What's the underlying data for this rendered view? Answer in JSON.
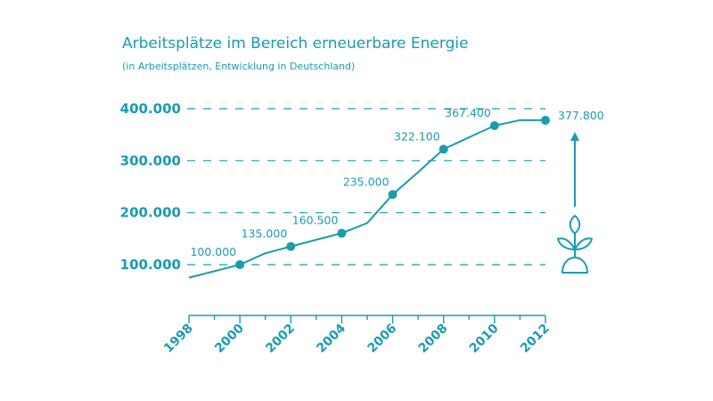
{
  "chart_data": {
    "type": "line",
    "title": "Arbeitsplätze im Bereich erneuerbare Energie",
    "subtitle": "(in Arbeitsplätzen, Entwicklung in Deutschland)",
    "xlabel": "",
    "ylabel": "",
    "xlim": [
      1998,
      2012
    ],
    "ylim": [
      0,
      400000
    ],
    "x_ticks": [
      "1998",
      "2000",
      "2002",
      "2004",
      "2006",
      "2008",
      "2010",
      "2012"
    ],
    "y_ticks": [
      {
        "value": 100000,
        "label": "100.000"
      },
      {
        "value": 200000,
        "label": "200.000"
      },
      {
        "value": 300000,
        "label": "300.000"
      },
      {
        "value": 400000,
        "label": "400.000"
      }
    ],
    "grid": "dashed horizontal",
    "line": [
      {
        "x": 1998,
        "y": 75000
      },
      {
        "x": 2000,
        "y": 100000
      },
      {
        "x": 2001,
        "y": 122000
      },
      {
        "x": 2002,
        "y": 135000
      },
      {
        "x": 2003,
        "y": 148000
      },
      {
        "x": 2004,
        "y": 160500
      },
      {
        "x": 2005,
        "y": 180000
      },
      {
        "x": 2006,
        "y": 235000
      },
      {
        "x": 2007,
        "y": 278000
      },
      {
        "x": 2008,
        "y": 322100
      },
      {
        "x": 2009,
        "y": 345000
      },
      {
        "x": 2010,
        "y": 367400
      },
      {
        "x": 2011,
        "y": 378000
      },
      {
        "x": 2012,
        "y": 377800
      }
    ],
    "labeled_points": [
      {
        "x": 2000,
        "y": 100000,
        "label": "100.000"
      },
      {
        "x": 2002,
        "y": 135000,
        "label": "135.000"
      },
      {
        "x": 2004,
        "y": 160500,
        "label": "160.500"
      },
      {
        "x": 2006,
        "y": 235000,
        "label": "235.000"
      },
      {
        "x": 2008,
        "y": 322100,
        "label": "322.100"
      },
      {
        "x": 2010,
        "y": 367400,
        "label": "367.400"
      },
      {
        "x": 2012,
        "y": 377800,
        "label": "377.800"
      }
    ],
    "colors": {
      "accent": "#1a9bb0"
    },
    "icons": [
      "up-arrow-icon",
      "seedling-icon"
    ]
  }
}
